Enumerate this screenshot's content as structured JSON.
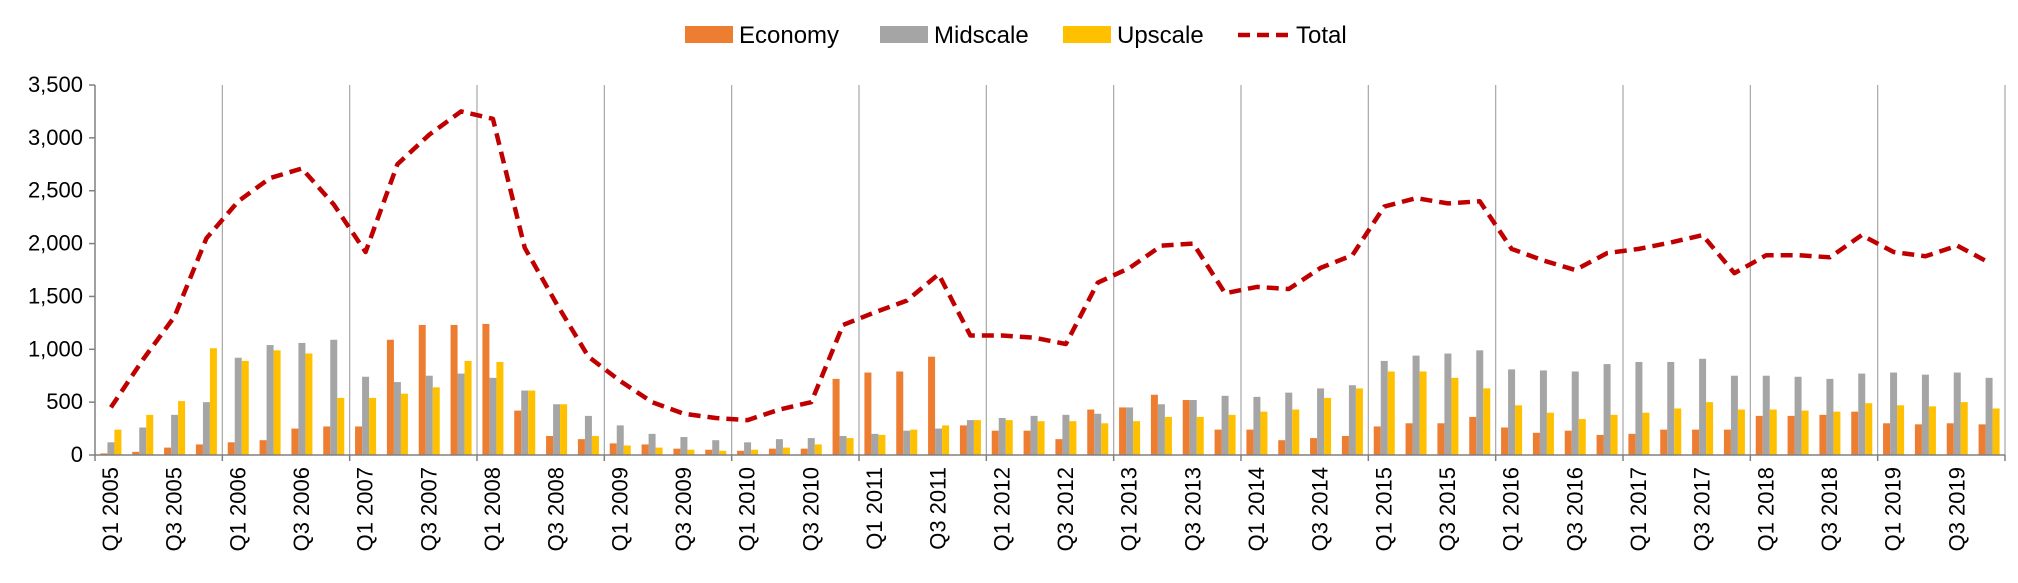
{
  "chart_data": {
    "type": "bar",
    "categories": [
      "Q1 2005",
      "Q2 2005",
      "Q3 2005",
      "Q4 2005",
      "Q1 2006",
      "Q2 2006",
      "Q3 2006",
      "Q4 2006",
      "Q1 2007",
      "Q2 2007",
      "Q3 2007",
      "Q4 2007",
      "Q1 2008",
      "Q2 2008",
      "Q3 2008",
      "Q4 2008",
      "Q1 2009",
      "Q2 2009",
      "Q3 2009",
      "Q4 2009",
      "Q1 2010",
      "Q2 2010",
      "Q3 2010",
      "Q4 2010",
      "Q1 2011",
      "Q2 2011",
      "Q3 2011",
      "Q4 2011",
      "Q1 2012",
      "Q2 2012",
      "Q3 2012",
      "Q4 2012",
      "Q1 2013",
      "Q2 2013",
      "Q3 2013",
      "Q4 2013",
      "Q1 2014",
      "Q2 2014",
      "Q3 2014",
      "Q4 2014",
      "Q1 2015",
      "Q2 2015",
      "Q3 2015",
      "Q4 2015",
      "Q1 2016",
      "Q2 2016",
      "Q3 2016",
      "Q4 2016",
      "Q1 2017",
      "Q2 2017",
      "Q3 2017",
      "Q4 2017",
      "Q1 2018",
      "Q2 2018",
      "Q3 2018",
      "Q4 2018",
      "Q1 2019",
      "Q2 2019",
      "Q3 2019",
      "Q4 2019"
    ],
    "shown_tick_labels": [
      "Q1 2005",
      "Q3 2005",
      "Q1 2006",
      "Q3 2006",
      "Q1 2007",
      "Q3 2007",
      "Q1 2008",
      "Q3 2008",
      "Q1 2009",
      "Q3 2009",
      "Q1 2010",
      "Q3 2010",
      "Q1 2011",
      "Q3 2011",
      "Q1 2012",
      "Q3 2012",
      "Q1 2013",
      "Q3 2013",
      "Q1 2014",
      "Q3 2014",
      "Q1 2015",
      "Q3 2015",
      "Q1 2016",
      "Q3 2016",
      "Q1 2017",
      "Q3 2017",
      "Q1 2018",
      "Q3 2018",
      "Q1 2019",
      "Q3 2019"
    ],
    "series": [
      {
        "name": "Economy",
        "kind": "bar",
        "color": "#ED7D31",
        "values": [
          15,
          30,
          70,
          100,
          120,
          140,
          250,
          270,
          270,
          1090,
          1230,
          1230,
          1240,
          420,
          180,
          150,
          110,
          100,
          60,
          50,
          40,
          60,
          60,
          720,
          780,
          790,
          930,
          280,
          230,
          230,
          150,
          430,
          450,
          570,
          520,
          240,
          240,
          140,
          160,
          180,
          270,
          300,
          300,
          360,
          260,
          210,
          230,
          190,
          200,
          240,
          240,
          240,
          370,
          370,
          380,
          410,
          300,
          290,
          300,
          290
        ]
      },
      {
        "name": "Midscale",
        "kind": "bar",
        "color": "#A5A5A5",
        "values": [
          120,
          260,
          380,
          500,
          920,
          1040,
          1060,
          1090,
          740,
          690,
          750,
          770,
          730,
          610,
          480,
          370,
          280,
          200,
          170,
          140,
          120,
          150,
          160,
          180,
          200,
          230,
          250,
          330,
          350,
          370,
          380,
          390,
          450,
          480,
          520,
          560,
          550,
          590,
          630,
          660,
          890,
          940,
          960,
          990,
          810,
          800,
          790,
          860,
          880,
          880,
          910,
          750,
          750,
          740,
          720,
          770,
          780,
          760,
          780,
          730
        ]
      },
      {
        "name": "Upscale",
        "kind": "bar",
        "color": "#FFC000",
        "values": [
          240,
          380,
          510,
          1010,
          890,
          990,
          960,
          540,
          540,
          580,
          640,
          890,
          880,
          610,
          480,
          180,
          90,
          70,
          50,
          40,
          50,
          70,
          100,
          160,
          190,
          240,
          280,
          330,
          330,
          320,
          320,
          300,
          320,
          360,
          360,
          380,
          410,
          430,
          540,
          630,
          790,
          790,
          730,
          630,
          470,
          400,
          340,
          380,
          400,
          440,
          500,
          430,
          430,
          420,
          410,
          490,
          470,
          460,
          500,
          440
        ]
      },
      {
        "name": "Total",
        "kind": "line",
        "style": "dashed",
        "color": "#C00000",
        "values": [
          450,
          900,
          1310,
          2050,
          2400,
          2620,
          2710,
          2370,
          1920,
          2750,
          3030,
          3250,
          3180,
          1960,
          1430,
          930,
          700,
          500,
          390,
          350,
          330,
          430,
          500,
          1230,
          1350,
          1460,
          1710,
          1130,
          1130,
          1110,
          1050,
          1630,
          1770,
          1980,
          2000,
          1530,
          1590,
          1570,
          1770,
          1890,
          2350,
          2430,
          2380,
          2400,
          1950,
          1840,
          1750,
          1910,
          1950,
          2010,
          2080,
          1720,
          1890,
          1890,
          1870,
          2080,
          1920,
          1880,
          1980,
          1820
        ]
      }
    ],
    "ylim": [
      0,
      3500
    ],
    "yticks": [
      0,
      500,
      1000,
      1500,
      2000,
      2500,
      3000,
      3500
    ],
    "ytick_labels": [
      "0",
      "500",
      "1,000",
      "1,500",
      "2,000",
      "2,500",
      "3,000",
      "3,500"
    ],
    "legend_position": "top-center",
    "grid": "vertical separators between years",
    "title": "",
    "xlabel": "",
    "ylabel": ""
  }
}
